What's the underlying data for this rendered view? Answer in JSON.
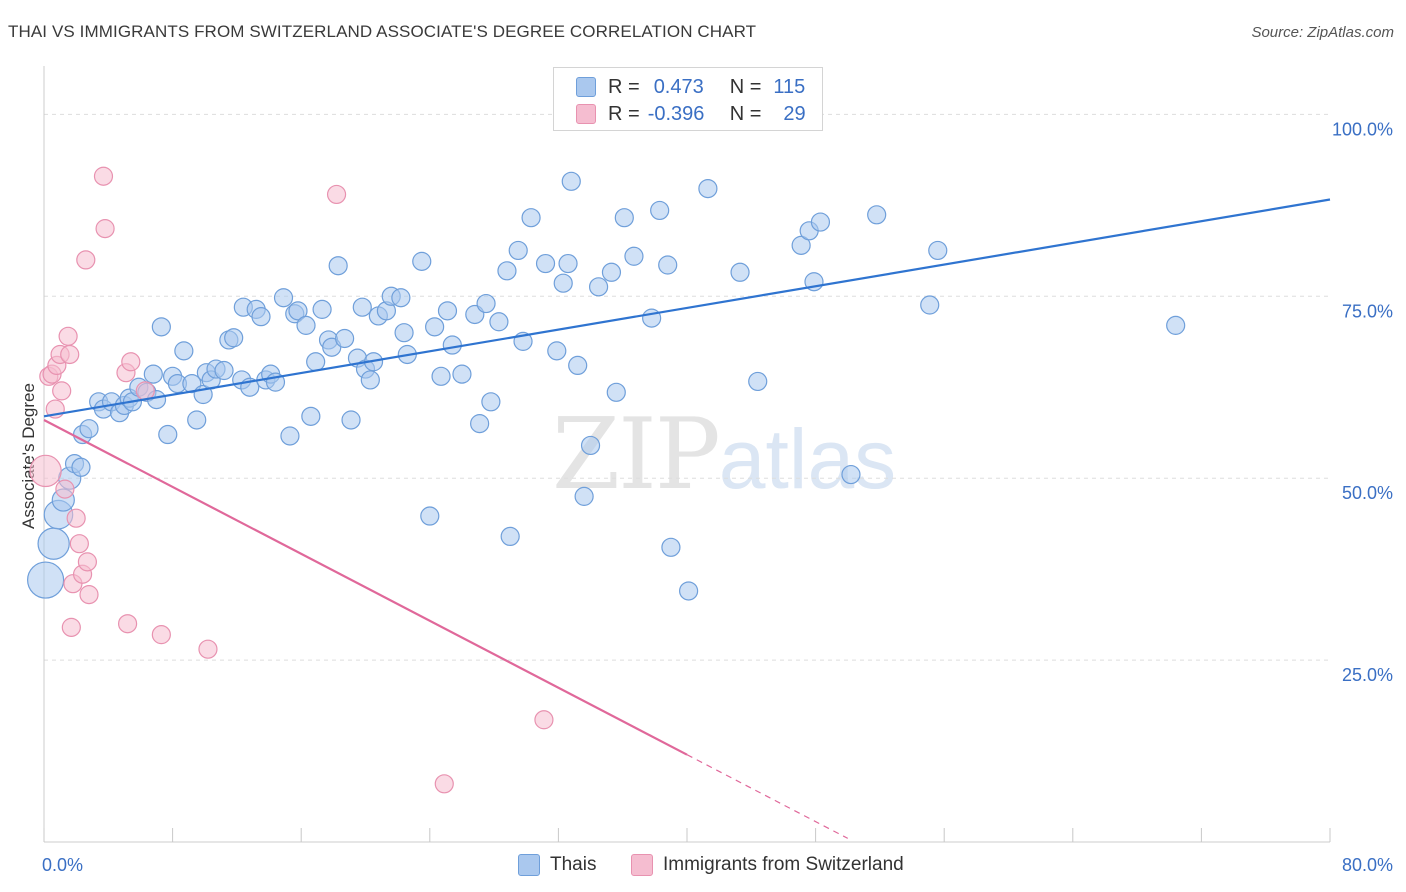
{
  "title": "THAI VS IMMIGRANTS FROM SWITZERLAND ASSOCIATE'S DEGREE CORRELATION CHART",
  "source": "Source: ZipAtlas.com",
  "watermark": {
    "zip": "ZIP",
    "atlas": "atlas"
  },
  "legend": {
    "thais": {
      "r_label": "R =",
      "r_value": "0.473",
      "n_label": "N =",
      "n_value": "115"
    },
    "swiss": {
      "r_label": "R =",
      "r_value": "-0.396",
      "n_label": "N =",
      "n_value": "29"
    }
  },
  "colors": {
    "thai_fill": "#aac8ee",
    "thai_stroke": "#6f9fda",
    "thai_line": "#2f74d0",
    "swiss_fill": "#f5bdd0",
    "swiss_stroke": "#e892b0",
    "swiss_line": "#e0689a",
    "grid": "#dddddd",
    "tick_label": "#3a6fc4"
  },
  "chart_data": {
    "type": "scatter",
    "title": "THAI VS IMMIGRANTS FROM SWITZERLAND ASSOCIATE'S DEGREE CORRELATION CHART",
    "xlabel": "",
    "ylabel": "Associate's Degree",
    "xlim": [
      0,
      80
    ],
    "ylim": [
      0,
      105
    ],
    "x_tick_labels": [
      {
        "value": 0,
        "label": "0.0%"
      },
      {
        "value": 80,
        "label": "80.0%"
      }
    ],
    "y_tick_labels": [
      {
        "value": 100,
        "label": "100.0%"
      },
      {
        "value": 75,
        "label": "75.0%"
      },
      {
        "value": 50,
        "label": "50.0%"
      },
      {
        "value": 25,
        "label": "25.0%"
      }
    ],
    "grid": true,
    "legend_position": "top-center",
    "series": [
      {
        "name": "Thais",
        "trend": {
          "x": [
            0,
            80
          ],
          "y": [
            58.5,
            88.3
          ]
        },
        "points": [
          [
            0.1,
            36.0,
            4
          ],
          [
            0.6,
            41.0,
            3
          ],
          [
            0.9,
            45.0,
            2.5
          ],
          [
            1.2,
            47.0,
            1.5
          ],
          [
            1.6,
            50.0,
            1.5
          ],
          [
            1.9,
            52.0,
            1
          ],
          [
            2.3,
            51.5,
            1
          ],
          [
            2.4,
            56.0,
            1
          ],
          [
            2.8,
            56.8,
            1
          ],
          [
            3.4,
            60.5,
            1
          ],
          [
            3.7,
            59.5,
            1
          ],
          [
            4.2,
            60.5,
            1
          ],
          [
            4.7,
            59.0,
            1
          ],
          [
            5.0,
            60.0,
            1
          ],
          [
            5.3,
            61.0,
            1
          ],
          [
            5.5,
            60.5,
            1
          ],
          [
            5.9,
            62.5,
            1
          ],
          [
            6.4,
            61.8,
            1
          ],
          [
            6.8,
            64.3,
            1
          ],
          [
            7.0,
            60.8,
            1
          ],
          [
            7.3,
            70.8,
            1
          ],
          [
            7.7,
            56.0,
            1
          ],
          [
            8.0,
            64.0,
            1
          ],
          [
            8.3,
            63.0,
            1
          ],
          [
            8.7,
            67.5,
            1
          ],
          [
            9.2,
            63.0,
            1
          ],
          [
            9.5,
            58.0,
            1
          ],
          [
            9.9,
            61.5,
            1
          ],
          [
            10.1,
            64.5,
            1
          ],
          [
            10.4,
            63.5,
            1
          ],
          [
            10.7,
            65.0,
            1
          ],
          [
            11.2,
            64.8,
            1
          ],
          [
            11.5,
            69.0,
            1
          ],
          [
            11.8,
            69.3,
            1
          ],
          [
            12.3,
            63.5,
            1
          ],
          [
            12.4,
            73.5,
            1
          ],
          [
            12.8,
            62.5,
            1
          ],
          [
            13.2,
            73.2,
            1
          ],
          [
            13.5,
            72.2,
            1
          ],
          [
            13.8,
            63.5,
            1
          ],
          [
            14.1,
            64.3,
            1
          ],
          [
            14.4,
            63.2,
            1
          ],
          [
            14.9,
            74.8,
            1
          ],
          [
            15.3,
            55.8,
            1
          ],
          [
            15.6,
            72.6,
            1
          ],
          [
            15.8,
            73.0,
            1
          ],
          [
            16.3,
            71.0,
            1
          ],
          [
            16.6,
            58.5,
            1
          ],
          [
            16.9,
            66.0,
            1
          ],
          [
            17.3,
            73.2,
            1
          ],
          [
            17.7,
            69.0,
            1
          ],
          [
            17.9,
            68.0,
            1
          ],
          [
            18.3,
            79.2,
            1
          ],
          [
            18.7,
            69.2,
            1
          ],
          [
            19.1,
            58.0,
            1
          ],
          [
            19.5,
            66.5,
            1
          ],
          [
            19.8,
            73.5,
            1
          ],
          [
            20.0,
            65.0,
            1
          ],
          [
            20.3,
            63.5,
            1
          ],
          [
            20.5,
            66.0,
            1
          ],
          [
            20.8,
            72.3,
            1
          ],
          [
            21.3,
            73.0,
            1
          ],
          [
            21.6,
            75.0,
            1
          ],
          [
            22.2,
            74.8,
            1
          ],
          [
            22.6,
            67.0,
            1
          ],
          [
            22.4,
            70.0,
            1
          ],
          [
            23.5,
            79.8,
            1
          ],
          [
            24.0,
            44.8,
            1
          ],
          [
            24.3,
            70.8,
            1
          ],
          [
            24.7,
            64.0,
            1
          ],
          [
            25.1,
            73.0,
            1
          ],
          [
            25.4,
            68.3,
            1
          ],
          [
            26.0,
            64.3,
            1
          ],
          [
            26.8,
            72.5,
            1
          ],
          [
            27.1,
            57.5,
            1
          ],
          [
            27.5,
            74.0,
            1
          ],
          [
            27.8,
            60.5,
            1
          ],
          [
            28.3,
            71.5,
            1
          ],
          [
            28.8,
            78.5,
            1
          ],
          [
            29.0,
            42.0,
            1
          ],
          [
            29.5,
            81.3,
            1
          ],
          [
            29.8,
            68.8,
            1
          ],
          [
            30.3,
            85.8,
            1
          ],
          [
            31.2,
            79.5,
            1
          ],
          [
            31.9,
            67.5,
            1
          ],
          [
            32.3,
            76.8,
            1
          ],
          [
            32.6,
            79.5,
            1
          ],
          [
            32.8,
            90.8,
            1
          ],
          [
            33.2,
            65.5,
            1
          ],
          [
            33.6,
            47.5,
            1
          ],
          [
            34.0,
            54.5,
            1
          ],
          [
            34.5,
            76.3,
            1
          ],
          [
            35.3,
            78.3,
            1
          ],
          [
            35.6,
            61.8,
            1
          ],
          [
            36.1,
            85.8,
            1
          ],
          [
            36.7,
            80.5,
            1
          ],
          [
            37.8,
            72.0,
            1
          ],
          [
            38.3,
            86.8,
            1
          ],
          [
            38.8,
            79.3,
            1
          ],
          [
            39.0,
            40.5,
            1
          ],
          [
            40.1,
            34.5,
            1
          ],
          [
            41.3,
            89.8,
            1
          ],
          [
            43.3,
            78.3,
            1
          ],
          [
            44.4,
            63.3,
            1
          ],
          [
            47.1,
            82.0,
            1
          ],
          [
            47.6,
            84.0,
            1
          ],
          [
            47.9,
            77.0,
            1
          ],
          [
            48.3,
            85.2,
            1
          ],
          [
            50.2,
            50.5,
            1
          ],
          [
            51.8,
            86.2,
            1
          ],
          [
            55.1,
            73.8,
            1
          ],
          [
            55.6,
            81.3,
            1
          ],
          [
            70.4,
            71.0,
            1
          ]
        ]
      },
      {
        "name": "Immigrants from Switzerland",
        "trend": {
          "x": [
            0,
            40
          ],
          "y": [
            58.0,
            12.0
          ]
        },
        "trend_dashed": {
          "x": [
            40,
            50
          ],
          "y": [
            12.0,
            0.5
          ]
        },
        "points": [
          [
            0.1,
            51.0,
            3
          ],
          [
            0.3,
            64.0,
            1
          ],
          [
            0.5,
            64.3,
            1
          ],
          [
            0.7,
            59.5,
            1
          ],
          [
            0.8,
            65.5,
            1
          ],
          [
            1.0,
            67.0,
            1
          ],
          [
            1.1,
            62.0,
            1
          ],
          [
            1.3,
            48.5,
            1
          ],
          [
            1.5,
            69.5,
            1
          ],
          [
            1.6,
            67.0,
            1
          ],
          [
            1.7,
            29.5,
            1
          ],
          [
            1.8,
            35.5,
            1
          ],
          [
            2.0,
            44.5,
            1
          ],
          [
            2.2,
            41.0,
            1
          ],
          [
            2.4,
            36.8,
            1
          ],
          [
            2.6,
            80.0,
            1
          ],
          [
            2.7,
            38.5,
            1
          ],
          [
            2.8,
            34.0,
            1
          ],
          [
            3.7,
            91.5,
            1
          ],
          [
            3.8,
            84.3,
            1
          ],
          [
            5.1,
            64.5,
            1
          ],
          [
            5.2,
            30.0,
            1
          ],
          [
            5.4,
            66.0,
            1
          ],
          [
            6.3,
            62.0,
            1
          ],
          [
            7.3,
            28.5,
            1
          ],
          [
            10.2,
            26.5,
            1
          ],
          [
            18.2,
            89.0,
            1
          ],
          [
            31.1,
            16.8,
            1
          ],
          [
            24.9,
            8.0,
            1
          ]
        ]
      }
    ]
  }
}
